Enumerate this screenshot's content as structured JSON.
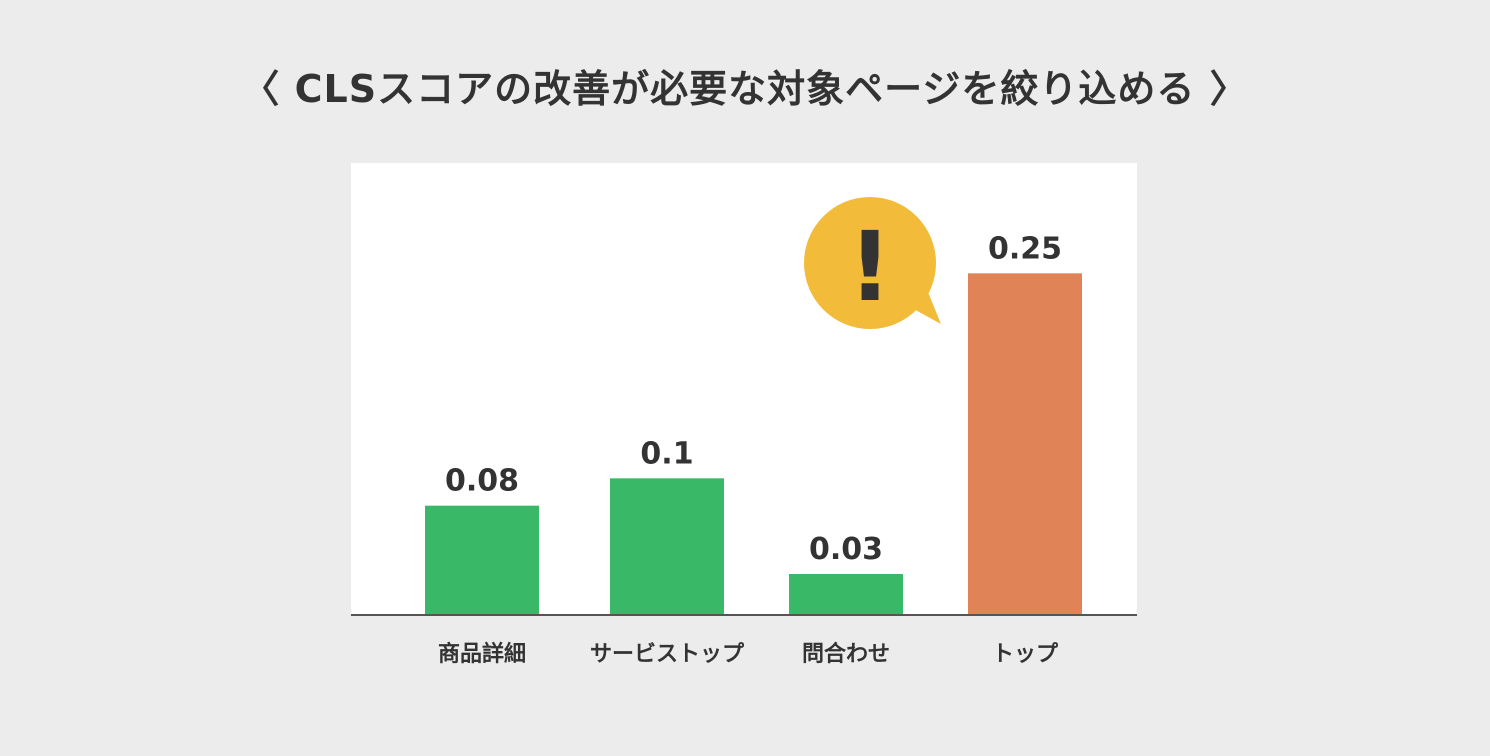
{
  "colors": {
    "background": "#ececec",
    "plot_background": "#ffffff",
    "bar_default": "#39b967",
    "bar_highlight": "#e08356",
    "alert_bubble": "#f2bb3a",
    "text": "#333333"
  },
  "chart_data": {
    "type": "bar",
    "title": "〈 CLSスコアの改善が必要な対象ページを絞り込める 〉",
    "categories": [
      "商品詳細",
      "サービストップ",
      "問合わせ",
      "トップ"
    ],
    "values": [
      0.08,
      0.1,
      0.03,
      0.25
    ],
    "value_labels": [
      "0.08",
      "0.1",
      "0.03",
      "0.25"
    ],
    "highlighted_category": "トップ",
    "highlight_icon": "exclamation-speech-bubble-icon",
    "highlight_icon_text": "!",
    "ylim": [
      0,
      0.3
    ],
    "grid": false,
    "xlabel": "",
    "ylabel": ""
  }
}
